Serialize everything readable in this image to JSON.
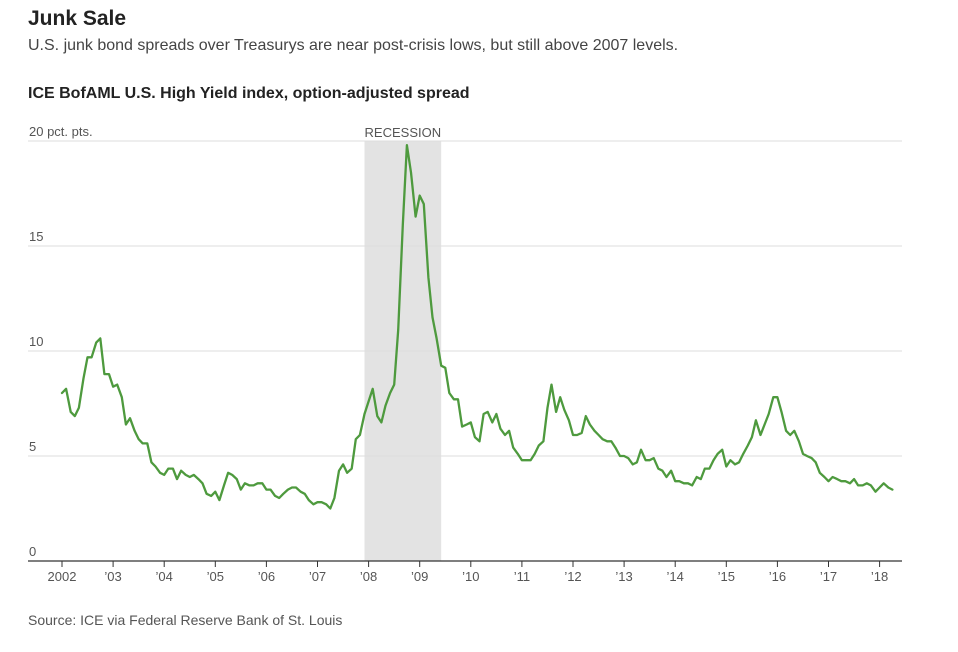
{
  "header": {
    "title": "Junk Sale",
    "subtitle": "U.S. junk bond spreads over Treasurys are near post-crisis lows, but still above 2007 levels.",
    "chart_heading": "ICE BofAML U.S. High Yield index, option-adjusted spread"
  },
  "footer": {
    "source": "Source: ICE via Federal Reserve Bank of St. Louis"
  },
  "colors": {
    "line": "#4e9a3e",
    "recession_band": "#e3e3e3",
    "gridline": "#dddddd",
    "axis": "#333333"
  },
  "chart_data": {
    "type": "line",
    "title": "ICE BofAML U.S. High Yield index, option-adjusted spread",
    "ylabel": "20 pct. pts.",
    "ylim": [
      0,
      20
    ],
    "yticks": [
      {
        "value": 0,
        "label": "0"
      },
      {
        "value": 5,
        "label": "5"
      },
      {
        "value": 10,
        "label": "10"
      },
      {
        "value": 15,
        "label": "15"
      },
      {
        "value": 20,
        "label": "20 pct. pts."
      }
    ],
    "xlim": [
      2002,
      2018.5
    ],
    "xticks": [
      {
        "value": 2002,
        "label": "2002"
      },
      {
        "value": 2003,
        "label": "’03"
      },
      {
        "value": 2004,
        "label": "’04"
      },
      {
        "value": 2005,
        "label": "’05"
      },
      {
        "value": 2006,
        "label": "’06"
      },
      {
        "value": 2007,
        "label": "’07"
      },
      {
        "value": 2008,
        "label": "’08"
      },
      {
        "value": 2009,
        "label": "’09"
      },
      {
        "value": 2010,
        "label": "’10"
      },
      {
        "value": 2011,
        "label": "’11"
      },
      {
        "value": 2012,
        "label": "’12"
      },
      {
        "value": 2013,
        "label": "’13"
      },
      {
        "value": 2014,
        "label": "’14"
      },
      {
        "value": 2015,
        "label": "’15"
      },
      {
        "value": 2016,
        "label": "’16"
      },
      {
        "value": 2017,
        "label": "’17"
      },
      {
        "value": 2018,
        "label": "’18"
      }
    ],
    "grid": true,
    "annotations": [
      {
        "type": "shaded_band",
        "label": "RECESSION",
        "x_start": 2007.92,
        "x_end": 2009.42
      }
    ],
    "series": [
      {
        "x": [
          2002.0,
          2002.08,
          2002.17,
          2002.25,
          2002.33,
          2002.42,
          2002.5,
          2002.58,
          2002.67,
          2002.75,
          2002.83,
          2002.92,
          2003.0,
          2003.08,
          2003.17,
          2003.25,
          2003.33,
          2003.42,
          2003.5,
          2003.58,
          2003.67,
          2003.75,
          2003.83,
          2003.92,
          2004.0,
          2004.08,
          2004.17,
          2004.25,
          2004.33,
          2004.42,
          2004.5,
          2004.58,
          2004.67,
          2004.75,
          2004.83,
          2004.92,
          2005.0,
          2005.08,
          2005.17,
          2005.25,
          2005.33,
          2005.42,
          2005.5,
          2005.58,
          2005.67,
          2005.75,
          2005.83,
          2005.92,
          2006.0,
          2006.08,
          2006.17,
          2006.25,
          2006.33,
          2006.42,
          2006.5,
          2006.58,
          2006.67,
          2006.75,
          2006.83,
          2006.92,
          2007.0,
          2007.08,
          2007.17,
          2007.25,
          2007.33,
          2007.42,
          2007.5,
          2007.58,
          2007.67,
          2007.75,
          2007.83,
          2007.92,
          2008.0,
          2008.08,
          2008.17,
          2008.25,
          2008.33,
          2008.42,
          2008.5,
          2008.58,
          2008.67,
          2008.75,
          2008.83,
          2008.92,
          2009.0,
          2009.08,
          2009.17,
          2009.25,
          2009.33,
          2009.42,
          2009.5,
          2009.58,
          2009.67,
          2009.75,
          2009.83,
          2009.92,
          2010.0,
          2010.08,
          2010.17,
          2010.25,
          2010.33,
          2010.42,
          2010.5,
          2010.58,
          2010.67,
          2010.75,
          2010.83,
          2010.92,
          2011.0,
          2011.08,
          2011.17,
          2011.25,
          2011.33,
          2011.42,
          2011.5,
          2011.58,
          2011.67,
          2011.75,
          2011.83,
          2011.92,
          2012.0,
          2012.08,
          2012.17,
          2012.25,
          2012.33,
          2012.42,
          2012.5,
          2012.58,
          2012.67,
          2012.75,
          2012.83,
          2012.92,
          2013.0,
          2013.08,
          2013.17,
          2013.25,
          2013.33,
          2013.42,
          2013.5,
          2013.58,
          2013.67,
          2013.75,
          2013.83,
          2013.92,
          2014.0,
          2014.08,
          2014.17,
          2014.25,
          2014.33,
          2014.42,
          2014.5,
          2014.58,
          2014.67,
          2014.75,
          2014.83,
          2014.92,
          2015.0,
          2015.08,
          2015.17,
          2015.25,
          2015.33,
          2015.42,
          2015.5,
          2015.58,
          2015.67,
          2015.75,
          2015.83,
          2015.92,
          2016.0,
          2016.08,
          2016.17,
          2016.25,
          2016.33,
          2016.42,
          2016.5,
          2016.58,
          2016.67,
          2016.75,
          2016.83,
          2016.92,
          2017.0,
          2017.08,
          2017.17,
          2017.25,
          2017.33,
          2017.42,
          2017.5,
          2017.58,
          2017.67,
          2017.75,
          2017.83,
          2017.92,
          2018.0,
          2018.08,
          2018.17,
          2018.25
        ],
        "values": [
          8.0,
          8.2,
          7.1,
          6.9,
          7.3,
          8.7,
          9.7,
          9.7,
          10.4,
          10.6,
          8.9,
          8.9,
          8.3,
          8.4,
          7.8,
          6.5,
          6.8,
          6.2,
          5.8,
          5.6,
          5.6,
          4.7,
          4.5,
          4.2,
          4.1,
          4.4,
          4.4,
          3.9,
          4.3,
          4.1,
          4.0,
          4.1,
          3.9,
          3.7,
          3.2,
          3.1,
          3.3,
          2.9,
          3.6,
          4.2,
          4.1,
          3.9,
          3.4,
          3.7,
          3.6,
          3.6,
          3.7,
          3.7,
          3.4,
          3.4,
          3.1,
          3.0,
          3.2,
          3.4,
          3.5,
          3.5,
          3.3,
          3.2,
          2.9,
          2.7,
          2.8,
          2.8,
          2.7,
          2.5,
          3.0,
          4.3,
          4.6,
          4.2,
          4.4,
          5.8,
          6.0,
          7.0,
          7.6,
          8.2,
          6.9,
          6.6,
          7.4,
          8.0,
          8.4,
          11.0,
          16.0,
          19.8,
          18.5,
          16.4,
          17.4,
          17.0,
          13.5,
          11.6,
          10.6,
          9.3,
          9.2,
          8.0,
          7.7,
          7.7,
          6.4,
          6.5,
          6.6,
          5.9,
          5.7,
          7.0,
          7.1,
          6.6,
          7.0,
          6.3,
          6.0,
          6.2,
          5.4,
          5.1,
          4.8,
          4.8,
          4.8,
          5.1,
          5.5,
          5.7,
          7.3,
          8.4,
          7.1,
          7.8,
          7.2,
          6.7,
          6.0,
          6.0,
          6.1,
          6.9,
          6.5,
          6.2,
          6.0,
          5.8,
          5.7,
          5.7,
          5.4,
          5.0,
          5.0,
          4.9,
          4.6,
          4.7,
          5.3,
          4.8,
          4.8,
          4.9,
          4.4,
          4.3,
          4.0,
          4.3,
          3.8,
          3.8,
          3.7,
          3.7,
          3.6,
          4.0,
          3.9,
          4.4,
          4.4,
          4.8,
          5.1,
          5.3,
          4.5,
          4.8,
          4.6,
          4.7,
          5.1,
          5.5,
          5.9,
          6.7,
          6.0,
          6.5,
          7.0,
          7.8,
          7.8,
          7.1,
          6.2,
          6.0,
          6.2,
          5.7,
          5.1,
          5.0,
          4.9,
          4.7,
          4.2,
          4.0,
          3.8,
          4.0,
          3.9,
          3.8,
          3.8,
          3.7,
          3.9,
          3.6,
          3.6,
          3.7,
          3.6,
          3.3,
          3.5,
          3.7,
          3.5,
          3.4
        ]
      }
    ]
  }
}
